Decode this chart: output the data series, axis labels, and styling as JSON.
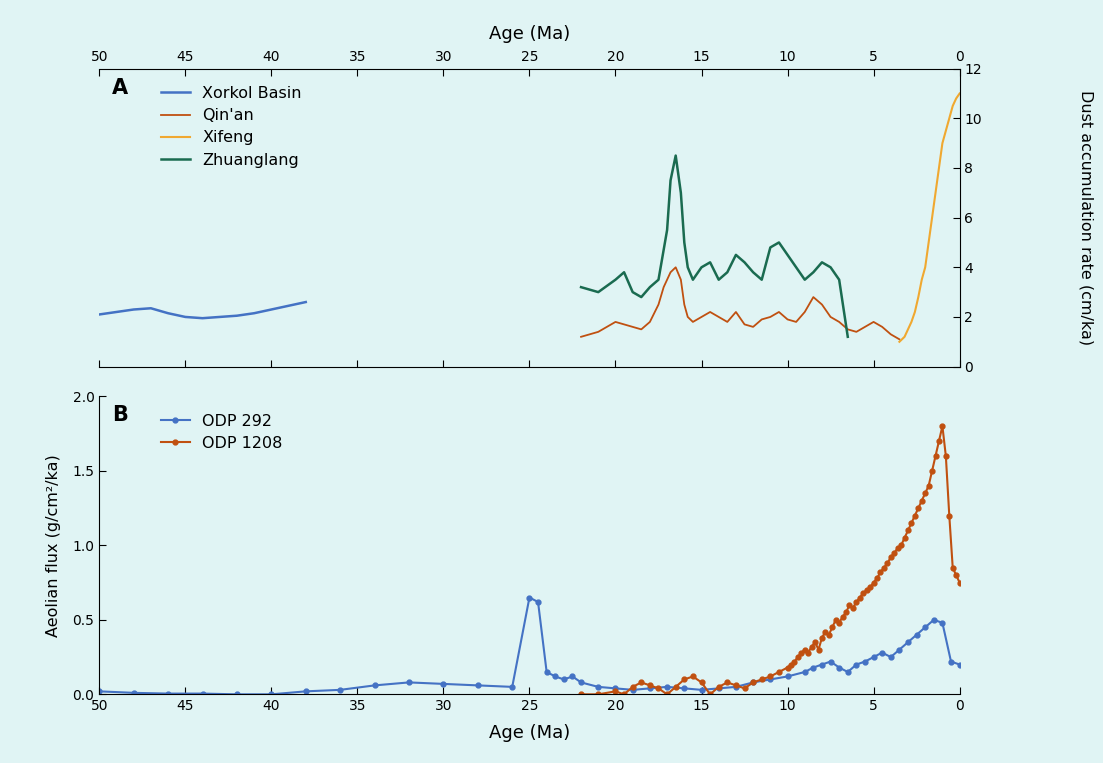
{
  "background_color": "#e0f4f4",
  "fig_width": 11.03,
  "fig_height": 7.63,
  "top_xlabel": "Age (Ma)",
  "bottom_xlabel": "Age (Ma)",
  "ylabel_A": "Dust accumulation rate (cm/ka)",
  "ylabel_B": "Aeolian flux (g/cm²/ka)",
  "xlim": [
    50,
    0
  ],
  "ylim_A": [
    0,
    12
  ],
  "ylim_B": [
    0,
    2
  ],
  "yticks_A": [
    0,
    2,
    4,
    6,
    8,
    10,
    12
  ],
  "yticks_B": [
    0,
    0.5,
    1.0,
    1.5,
    2.0
  ],
  "xticks": [
    50,
    45,
    40,
    35,
    30,
    25,
    20,
    15,
    10,
    5,
    0
  ],
  "label_A": "A",
  "label_B": "B",
  "colors": {
    "xorkol": "#4472C4",
    "qinan": "#C05010",
    "xifeng": "#F0A830",
    "zhuanglang": "#1A6B50",
    "odp292": "#4472C4",
    "odp1208": "#C05010"
  },
  "legend_A": [
    "Xorkol Basin",
    "Qin'an",
    "Xifeng",
    "Zhuanglang"
  ],
  "legend_B": [
    "ODP 292",
    "ODP 1208"
  ],
  "xorkol_x": [
    50,
    49,
    48,
    47,
    46,
    45,
    44,
    43,
    42,
    41,
    40,
    39,
    38
  ],
  "xorkol_y": [
    2.1,
    2.2,
    2.3,
    2.35,
    2.15,
    2.0,
    1.95,
    2.0,
    2.05,
    2.15,
    2.3,
    2.45,
    2.6
  ],
  "qinan_x": [
    22.0,
    21.5,
    21.0,
    20.5,
    20.0,
    19.5,
    19.0,
    18.5,
    18.0,
    17.5,
    17.2,
    16.8,
    16.5,
    16.2,
    16.0,
    15.8,
    15.5,
    15.0,
    14.5,
    14.0,
    13.5,
    13.0,
    12.5,
    12.0,
    11.5,
    11.0,
    10.5,
    10.0,
    9.5,
    9.0,
    8.5,
    8.0,
    7.5,
    7.0,
    6.5,
    6.0,
    5.5,
    5.0,
    4.5,
    4.0,
    3.5
  ],
  "qinan_y": [
    1.2,
    1.3,
    1.4,
    1.6,
    1.8,
    1.7,
    1.6,
    1.5,
    1.8,
    2.5,
    3.2,
    3.8,
    4.0,
    3.5,
    2.5,
    2.0,
    1.8,
    2.0,
    2.2,
    2.0,
    1.8,
    2.2,
    1.7,
    1.6,
    1.9,
    2.0,
    2.2,
    1.9,
    1.8,
    2.2,
    2.8,
    2.5,
    2.0,
    1.8,
    1.5,
    1.4,
    1.6,
    1.8,
    1.6,
    1.3,
    1.1
  ],
  "xifeng_x": [
    3.5,
    3.2,
    3.0,
    2.8,
    2.6,
    2.4,
    2.2,
    2.0,
    1.8,
    1.6,
    1.4,
    1.2,
    1.0,
    0.8,
    0.6,
    0.4,
    0.2,
    0.0
  ],
  "xifeng_y": [
    1.0,
    1.2,
    1.5,
    1.8,
    2.2,
    2.8,
    3.5,
    4.0,
    5.0,
    6.0,
    7.0,
    8.0,
    9.0,
    9.5,
    10.0,
    10.5,
    10.8,
    11.0
  ],
  "zhuanglang_x": [
    22.0,
    21.0,
    20.0,
    19.5,
    19.0,
    18.5,
    18.0,
    17.5,
    17.0,
    16.8,
    16.5,
    16.2,
    16.0,
    15.8,
    15.5,
    15.0,
    14.5,
    14.0,
    13.5,
    13.0,
    12.5,
    12.0,
    11.5,
    11.0,
    10.5,
    10.0,
    9.5,
    9.0,
    8.5,
    8.0,
    7.5,
    7.0,
    6.5
  ],
  "zhuanglang_y": [
    3.2,
    3.0,
    3.5,
    3.8,
    3.0,
    2.8,
    3.2,
    3.5,
    5.5,
    7.5,
    8.5,
    7.0,
    5.0,
    4.0,
    3.5,
    4.0,
    4.2,
    3.5,
    3.8,
    4.5,
    4.2,
    3.8,
    3.5,
    4.8,
    5.0,
    4.5,
    4.0,
    3.5,
    3.8,
    4.2,
    4.0,
    3.5,
    1.2
  ],
  "odp292_x": [
    50.0,
    48.0,
    46.0,
    44.0,
    42.0,
    40.0,
    38.0,
    36.0,
    34.0,
    32.0,
    30.0,
    28.0,
    26.0,
    25.0,
    24.5,
    24.0,
    23.5,
    23.0,
    22.5,
    22.0,
    21.0,
    20.0,
    19.0,
    18.0,
    17.0,
    16.0,
    15.0,
    14.0,
    13.0,
    12.0,
    11.0,
    10.0,
    9.0,
    8.5,
    8.0,
    7.5,
    7.0,
    6.5,
    6.0,
    5.5,
    5.0,
    4.5,
    4.0,
    3.5,
    3.0,
    2.5,
    2.0,
    1.5,
    1.0,
    0.5,
    0.0
  ],
  "odp292_y": [
    0.02,
    0.01,
    0.005,
    0.005,
    0.0,
    0.0,
    0.02,
    0.03,
    0.06,
    0.08,
    0.07,
    0.06,
    0.05,
    0.65,
    0.62,
    0.15,
    0.12,
    0.1,
    0.12,
    0.08,
    0.05,
    0.04,
    0.03,
    0.04,
    0.05,
    0.04,
    0.03,
    0.04,
    0.05,
    0.08,
    0.1,
    0.12,
    0.15,
    0.18,
    0.2,
    0.22,
    0.18,
    0.15,
    0.2,
    0.22,
    0.25,
    0.28,
    0.25,
    0.3,
    0.35,
    0.4,
    0.45,
    0.5,
    0.48,
    0.22,
    0.2
  ],
  "odp1208_x": [
    22.0,
    21.0,
    20.0,
    19.5,
    19.0,
    18.5,
    18.0,
    17.5,
    17.0,
    16.5,
    16.0,
    15.5,
    15.0,
    14.5,
    14.0,
    13.5,
    13.0,
    12.5,
    12.0,
    11.5,
    11.0,
    10.5,
    10.0,
    9.8,
    9.6,
    9.4,
    9.2,
    9.0,
    8.8,
    8.6,
    8.4,
    8.2,
    8.0,
    7.8,
    7.6,
    7.4,
    7.2,
    7.0,
    6.8,
    6.6,
    6.4,
    6.2,
    6.0,
    5.8,
    5.6,
    5.4,
    5.2,
    5.0,
    4.8,
    4.6,
    4.4,
    4.2,
    4.0,
    3.8,
    3.6,
    3.4,
    3.2,
    3.0,
    2.8,
    2.6,
    2.4,
    2.2,
    2.0,
    1.8,
    1.6,
    1.4,
    1.2,
    1.0,
    0.8,
    0.6,
    0.4,
    0.2,
    0.0
  ],
  "odp1208_y": [
    0.0,
    0.0,
    0.02,
    0.0,
    0.05,
    0.08,
    0.06,
    0.04,
    0.0,
    0.05,
    0.1,
    0.12,
    0.08,
    0.0,
    0.05,
    0.08,
    0.06,
    0.04,
    0.08,
    0.1,
    0.12,
    0.15,
    0.18,
    0.2,
    0.22,
    0.25,
    0.28,
    0.3,
    0.28,
    0.32,
    0.35,
    0.3,
    0.38,
    0.42,
    0.4,
    0.45,
    0.5,
    0.48,
    0.52,
    0.55,
    0.6,
    0.58,
    0.62,
    0.65,
    0.68,
    0.7,
    0.72,
    0.75,
    0.78,
    0.82,
    0.85,
    0.88,
    0.92,
    0.95,
    0.98,
    1.0,
    1.05,
    1.1,
    1.15,
    1.2,
    1.25,
    1.3,
    1.35,
    1.4,
    1.5,
    1.6,
    1.7,
    1.8,
    1.6,
    1.2,
    0.85,
    0.8,
    0.75
  ]
}
